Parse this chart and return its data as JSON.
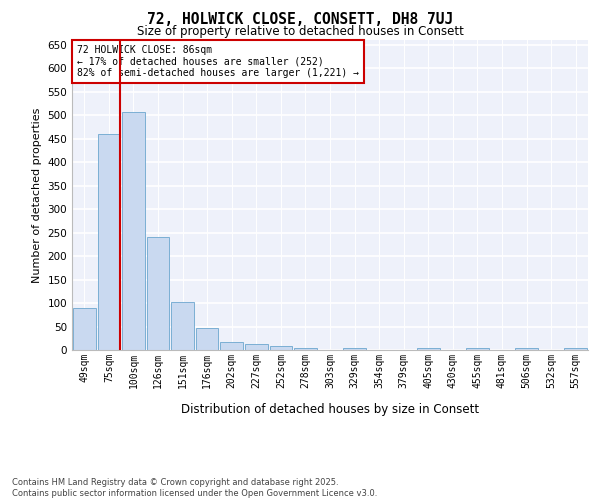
{
  "title1": "72, HOLWICK CLOSE, CONSETT, DH8 7UJ",
  "title2": "Size of property relative to detached houses in Consett",
  "xlabel": "Distribution of detached houses by size in Consett",
  "ylabel": "Number of detached properties",
  "bins": [
    "49sqm",
    "75sqm",
    "100sqm",
    "126sqm",
    "151sqm",
    "176sqm",
    "202sqm",
    "227sqm",
    "252sqm",
    "278sqm",
    "303sqm",
    "329sqm",
    "354sqm",
    "379sqm",
    "405sqm",
    "430sqm",
    "455sqm",
    "481sqm",
    "506sqm",
    "532sqm",
    "557sqm"
  ],
  "values": [
    90,
    460,
    507,
    240,
    103,
    47,
    17,
    13,
    8,
    4,
    0,
    4,
    0,
    0,
    4,
    0,
    4,
    0,
    4,
    0,
    4
  ],
  "bar_color": "#c9d9f0",
  "bar_edge_color": "#7bafd4",
  "vline_color": "#cc0000",
  "annotation_title": "72 HOLWICK CLOSE: 86sqm",
  "annotation_line1": "← 17% of detached houses are smaller (252)",
  "annotation_line2": "82% of semi-detached houses are larger (1,221) →",
  "annotation_box_color": "#cc0000",
  "ylim": [
    0,
    660
  ],
  "yticks": [
    0,
    50,
    100,
    150,
    200,
    250,
    300,
    350,
    400,
    450,
    500,
    550,
    600,
    650
  ],
  "background_color": "#eef1fa",
  "footer1": "Contains HM Land Registry data © Crown copyright and database right 2025.",
  "footer2": "Contains public sector information licensed under the Open Government Licence v3.0."
}
